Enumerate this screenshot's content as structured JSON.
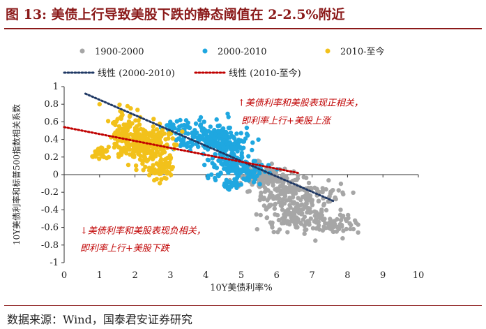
{
  "figure": {
    "title": "图 13: 美债上行导致美股下跌的静态阈值在 2-2.5%附近",
    "source": "数据来源：Wind，国泰君安证券研究"
  },
  "colors": {
    "title": "#8b1a1a",
    "s1900": "#a6a6a6",
    "s2000": "#1fa7e0",
    "s2010": "#f2c11b",
    "fit2000": "#1f3864",
    "fit2010": "#c00000",
    "annotation": "#c00000"
  },
  "chart_data": {
    "type": "scatter",
    "xlabel": "10Y美债利率%",
    "ylabel": "10Y美债利率和标普500指数相关系数",
    "xlim": [
      0,
      10
    ],
    "ylim": [
      -1,
      1
    ],
    "x_ticks": [
      "0",
      "1",
      "2",
      "3",
      "4",
      "5",
      "6",
      "7",
      "8",
      "9",
      "10"
    ],
    "y_ticks": [
      "1",
      "0.8",
      "0.6",
      "0.4",
      "0.2",
      "0",
      "-0.2",
      "-0.4",
      "-0.6",
      "-0.8",
      "-1"
    ],
    "series": [
      {
        "name": "1900-2000",
        "color": "#a6a6a6",
        "clusters": [
          {
            "x": 5.6,
            "y": 0.0,
            "sx": 0.35,
            "sy": 0.07,
            "n": 120
          },
          {
            "x": 6.3,
            "y": -0.25,
            "sx": 0.45,
            "sy": 0.13,
            "n": 170
          },
          {
            "x": 6.7,
            "y": -0.5,
            "sx": 0.55,
            "sy": 0.08,
            "n": 110
          },
          {
            "x": 7.7,
            "y": -0.57,
            "sx": 0.35,
            "sy": 0.05,
            "n": 45
          },
          {
            "x": 7.4,
            "y": -0.22,
            "sx": 0.3,
            "sy": 0.08,
            "n": 35
          }
        ]
      },
      {
        "name": "2000-2010",
        "color": "#1fa7e0",
        "clusters": [
          {
            "x": 3.9,
            "y": 0.45,
            "sx": 0.4,
            "sy": 0.08,
            "n": 130
          },
          {
            "x": 4.6,
            "y": 0.28,
            "sx": 0.3,
            "sy": 0.14,
            "n": 150
          },
          {
            "x": 5.0,
            "y": 0.05,
            "sx": 0.35,
            "sy": 0.08,
            "n": 100
          },
          {
            "x": 3.2,
            "y": 0.54,
            "sx": 0.2,
            "sy": 0.05,
            "n": 25
          },
          {
            "x": 4.7,
            "y": -0.12,
            "sx": 0.15,
            "sy": 0.04,
            "n": 25
          }
        ]
      },
      {
        "name": "2010-至今",
        "color": "#f2c11b",
        "clusters": [
          {
            "x": 1.7,
            "y": 0.55,
            "sx": 0.25,
            "sy": 0.12,
            "n": 70
          },
          {
            "x": 2.2,
            "y": 0.32,
            "sx": 0.35,
            "sy": 0.1,
            "n": 190
          },
          {
            "x": 2.7,
            "y": 0.1,
            "sx": 0.2,
            "sy": 0.08,
            "n": 70
          },
          {
            "x": 1.0,
            "y": 0.24,
            "sx": 0.12,
            "sy": 0.03,
            "n": 35
          },
          {
            "x": 2.8,
            "y": 0.4,
            "sx": 0.2,
            "sy": 0.08,
            "n": 40
          }
        ]
      }
    ],
    "fits": [
      {
        "name": "线性 (2000-2010)",
        "color": "#1f3864",
        "x": [
          0.6,
          7.6
        ],
        "y": [
          0.92,
          -0.3
        ]
      },
      {
        "name": "线性 (2010-至今)",
        "color": "#c00000",
        "x": [
          0.0,
          6.6
        ],
        "y": [
          0.54,
          0.02
        ]
      }
    ],
    "annotations": [
      {
        "text": "↑美债利率和美股表现正相关，",
        "x": 4.9,
        "y": 0.78
      },
      {
        "text": "即利率上行+美股上涨",
        "x": 5.0,
        "y": 0.58
      },
      {
        "text": "↓美债利率和美股表现负相关，",
        "x": 0.45,
        "y": -0.67
      },
      {
        "text": "即利率上行+美股下跌",
        "x": 0.45,
        "y": -0.87
      }
    ]
  }
}
